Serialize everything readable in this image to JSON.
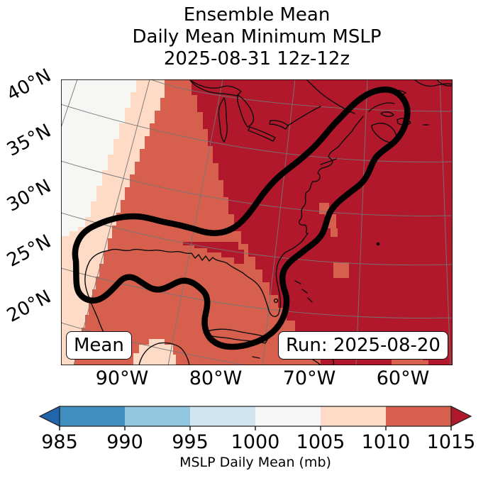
{
  "title": {
    "line1": "Ensemble Mean",
    "line2": "Daily Mean Minimum MSLP",
    "line3": "2025-08-31 12z-12z"
  },
  "map": {
    "stat_label": "Mean",
    "run_label": "Run: 2025-08-20",
    "lat_ticks": [
      "40°N",
      "35°N",
      "30°N",
      "25°N",
      "20°N"
    ],
    "lon_ticks": [
      "90°W",
      "80°W",
      "70°W",
      "60°W"
    ]
  },
  "colorbar": {
    "ticks": [
      "985",
      "990",
      "995",
      "1000",
      "1005",
      "1010",
      "1015"
    ],
    "label": "MSLP Daily Mean (mb)",
    "colors": {
      "under": "#2166ac",
      "985-990": "#3f8ec0",
      "990-995": "#92c5de",
      "995-1000": "#d1e5f0",
      "1000-1005": "#f7f7f7",
      "1005-1010": "#fddbc7",
      "1010-1015": "#d6604d",
      "over": "#b2182b"
    }
  },
  "chart_data": {
    "type": "heatmap",
    "title": "Ensemble Mean Daily Mean Minimum MSLP 2025-08-31 12z-12z",
    "variable": "MSLP Daily Mean (mb)",
    "statistic": "Mean",
    "run_date": "2025-08-20",
    "valid_period": "2025-08-31 12z-12z",
    "x_tick_labels_lon": [
      "90°W",
      "80°W",
      "70°W",
      "60°W"
    ],
    "y_tick_labels_lat": [
      "40°N",
      "35°N",
      "30°N",
      "25°N",
      "20°N"
    ],
    "colorbar_ticks_mb": [
      985,
      990,
      995,
      1000,
      1005,
      1010,
      1015
    ],
    "colorbar_extend": "both",
    "grid": true,
    "legend_position": "horizontal colorbar below map",
    "field_values_mb": [
      {
        "region": "far northwest corner (plains)",
        "range": "1000-1005"
      },
      {
        "region": "western band (central US / west Gulf rim)",
        "range": "1005-1010"
      },
      {
        "region": "Texas, Gulf of Mexico, Florida, Yucatan, Cuba",
        "range": "1010-1015"
      },
      {
        "region": "eastern US, Atlantic, eastern Canada (most of map)",
        "range": ">1015"
      }
    ],
    "annotations": [
      "thick black closed contour enclosing the Gulf of Mexico and a corridor along the US East Coast up to Nova Scotia / Gulf of St. Lawrence"
    ]
  }
}
